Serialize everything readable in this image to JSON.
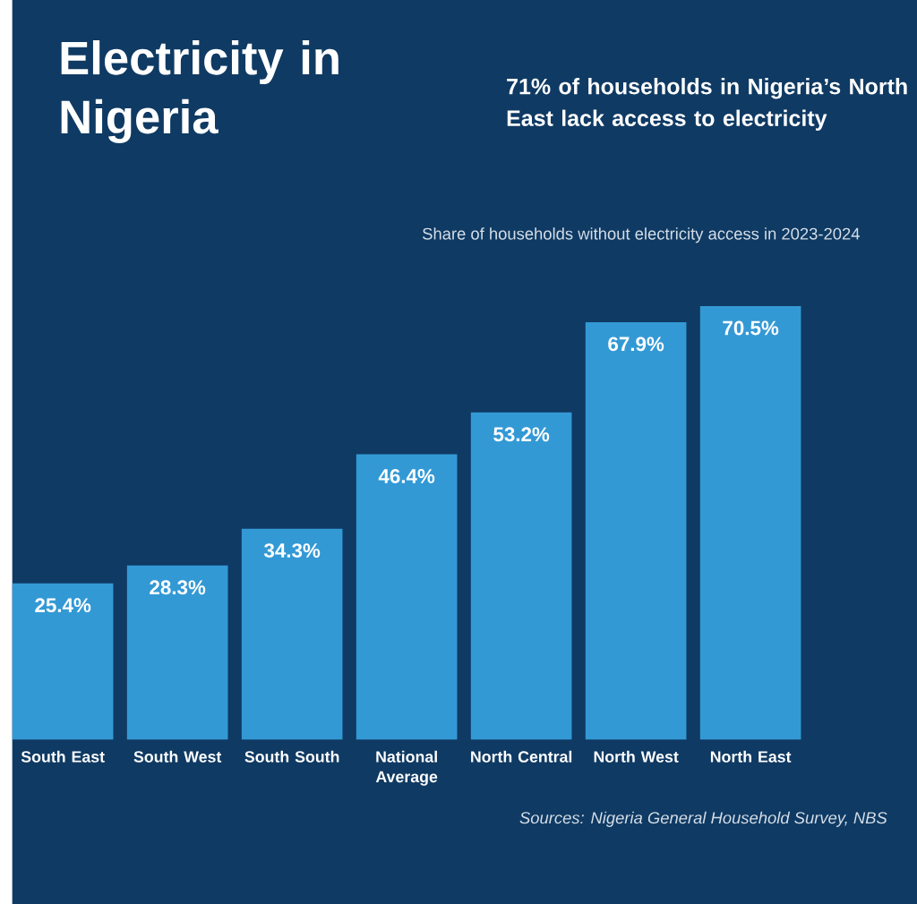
{
  "chart_data": {
    "type": "bar",
    "title": "Electricity in Nigeria",
    "subtitle": "71% of households in Nigeria’s North East lack access to electricity",
    "annotations": [
      "Share of households without electricity access in 2023-2024",
      "Sources: Nigeria General Household Survey, NBS"
    ],
    "categories": [
      "South East",
      "South West",
      "South South",
      "National Average",
      "North Central",
      "North West",
      "North East"
    ],
    "values": [
      25.4,
      28.3,
      34.3,
      46.4,
      53.2,
      67.9,
      70.5
    ],
    "value_labels": [
      "25.4%",
      "28.3%",
      "34.3%",
      "46.4%",
      "53.2%",
      "67.9%",
      "70.5%"
    ],
    "color": "#3399d5"
  }
}
